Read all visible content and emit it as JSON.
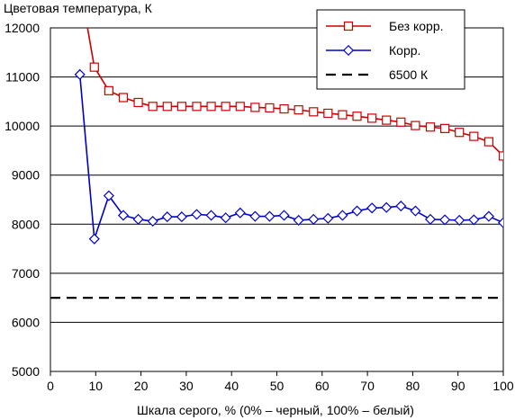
{
  "chart_data": {
    "type": "line",
    "title": "",
    "ylabel": "Цветовая температура, К",
    "xlabel": "Шкала серого, % (0% – черный, 100% – белый)",
    "xlim": [
      0,
      100
    ],
    "ylim": [
      5000,
      12000
    ],
    "xticks": [
      0,
      10,
      20,
      30,
      40,
      50,
      60,
      70,
      80,
      90,
      100
    ],
    "yticks": [
      5000,
      6000,
      7000,
      8000,
      9000,
      10000,
      11000,
      12000
    ],
    "grid": "horizontal",
    "legend_position": "top-right",
    "series": [
      {
        "name": "Без корр.",
        "color": "#cc0000",
        "marker": "square",
        "x": [
          6.5,
          9.7,
          12.9,
          16.1,
          19.4,
          22.6,
          25.8,
          29.0,
          32.3,
          35.5,
          38.7,
          41.9,
          45.2,
          48.4,
          51.6,
          54.8,
          58.1,
          61.3,
          64.5,
          67.7,
          71.0,
          74.2,
          77.4,
          80.6,
          83.9,
          87.1,
          90.3,
          93.5,
          96.8,
          100
        ],
        "y": [
          12900,
          11200,
          10720,
          10580,
          10480,
          10400,
          10400,
          10400,
          10400,
          10400,
          10400,
          10400,
          10380,
          10370,
          10350,
          10330,
          10290,
          10260,
          10230,
          10200,
          10160,
          10120,
          10080,
          10010,
          9980,
          9950,
          9870,
          9790,
          9680,
          9390
        ]
      },
      {
        "name": "Корр.",
        "color": "#0000cc",
        "marker": "diamond",
        "x": [
          6.5,
          9.7,
          12.9,
          16.1,
          19.4,
          22.6,
          25.8,
          29.0,
          32.3,
          35.5,
          38.7,
          41.9,
          45.2,
          48.4,
          51.6,
          54.8,
          58.1,
          61.3,
          64.5,
          67.7,
          71.0,
          74.2,
          77.4,
          80.6,
          83.9,
          87.1,
          90.3,
          93.5,
          96.8,
          100
        ],
        "y": [
          11050,
          7700,
          8580,
          8180,
          8100,
          8060,
          8150,
          8150,
          8200,
          8180,
          8130,
          8230,
          8160,
          8160,
          8180,
          8080,
          8100,
          8120,
          8180,
          8270,
          8330,
          8340,
          8370,
          8270,
          8100,
          8090,
          8080,
          8090,
          8160,
          8030
        ]
      },
      {
        "name": "6500 К",
        "color": "#000000",
        "style": "dashed",
        "x": [
          0,
          100
        ],
        "y": [
          6500,
          6500
        ]
      }
    ]
  }
}
